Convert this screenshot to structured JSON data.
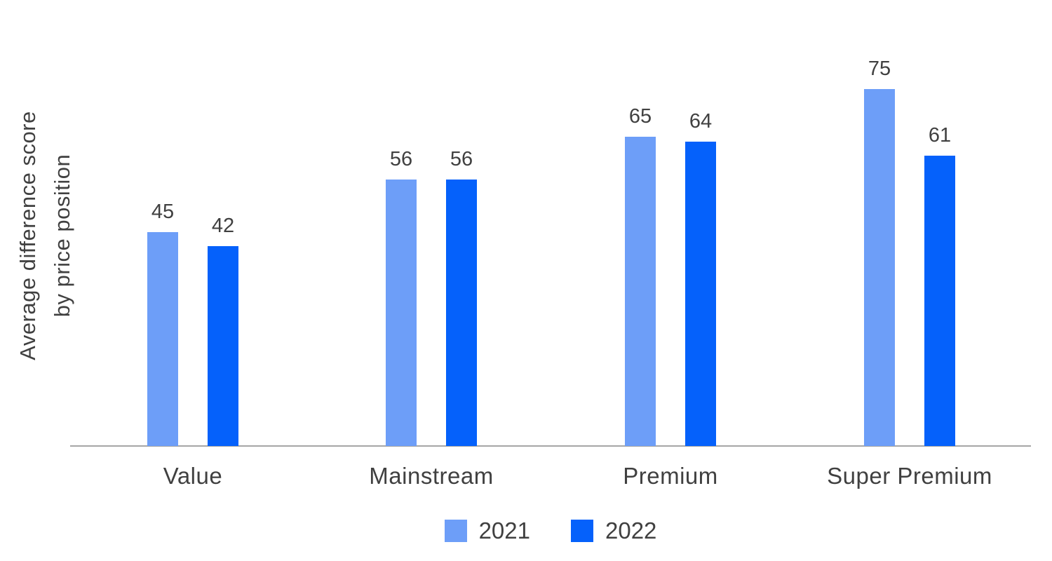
{
  "chart_data": {
    "type": "bar",
    "title": "",
    "ylabel": "Average difference score by price position",
    "ylabel_lines": [
      "Average difference score",
      "by price position"
    ],
    "xlabel": "",
    "categories": [
      "Value",
      "Mainstream",
      "Premium",
      "Super Premium"
    ],
    "series": [
      {
        "name": "2021",
        "color": "#6D9EF8",
        "values": [
          45,
          56,
          65,
          75
        ]
      },
      {
        "name": "2022",
        "color": "#0561FB",
        "values": [
          42,
          56,
          64,
          61
        ]
      }
    ],
    "value_labels_visible": true,
    "ylim": [
      0,
      80
    ],
    "grid": false,
    "y_axis_ticks_visible": false,
    "legend_position": "bottom"
  },
  "colors": {
    "text": "#404040",
    "axis_line": "#A6A6A6",
    "background": "#FFFFFF",
    "series_2021": "#6D9EF8",
    "series_2022": "#0561FB"
  }
}
